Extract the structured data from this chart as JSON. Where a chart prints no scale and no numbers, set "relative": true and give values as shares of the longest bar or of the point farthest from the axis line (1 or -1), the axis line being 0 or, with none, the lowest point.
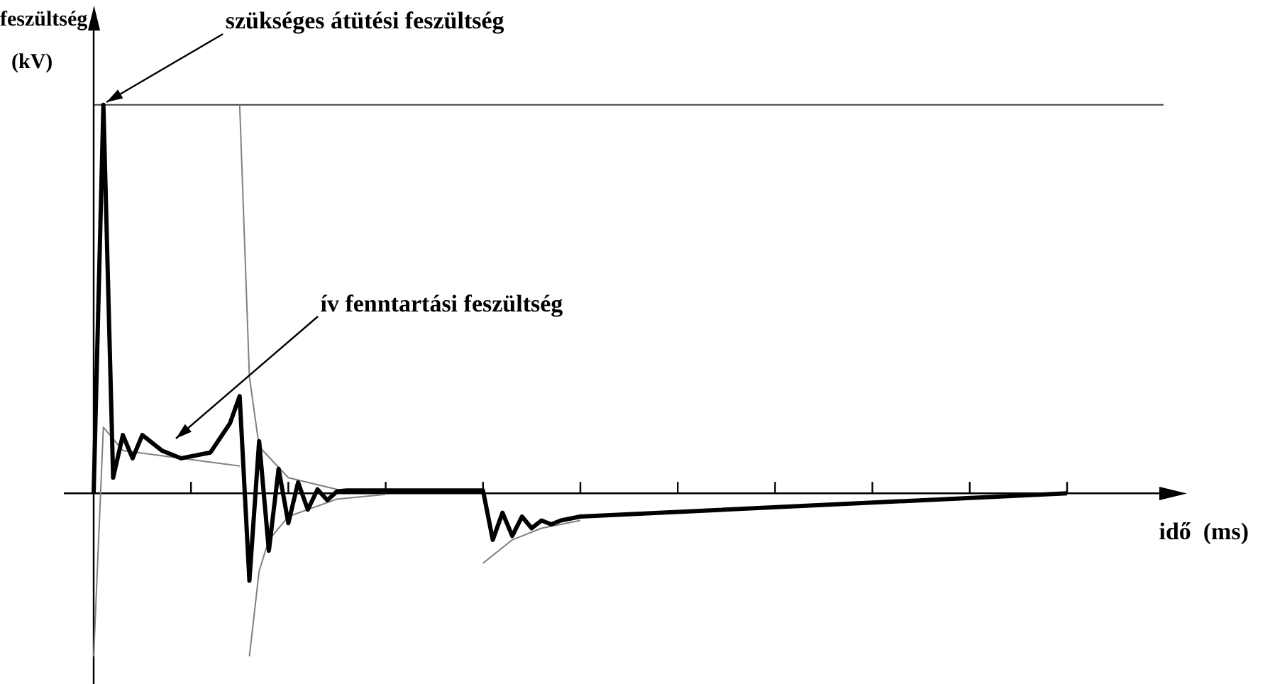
{
  "chart_data": {
    "type": "line",
    "relative": true,
    "xlabel": "idő  (ms)",
    "ylabel": "feszültség (kV)",
    "categories": [
      null,
      null,
      null,
      null,
      null,
      null,
      null,
      null,
      null,
      null,
      null,
      null,
      null,
      null,
      null,
      null,
      null,
      null,
      null,
      null,
      null,
      null,
      null,
      null,
      null,
      null,
      null,
      null,
      null,
      null,
      null,
      null,
      null,
      null,
      null,
      null,
      null,
      null,
      null,
      null,
      null,
      null,
      null,
      null,
      null,
      null,
      null,
      null,
      null,
      null,
      null,
      null,
      null,
      null,
      null,
      null,
      null,
      null,
      null,
      null,
      null,
      null,
      null,
      null,
      null,
      null,
      null,
      null,
      null,
      null,
      null,
      null,
      null,
      null,
      null,
      null,
      null,
      null,
      null,
      null,
      null,
      null,
      null,
      null,
      null,
      null,
      null,
      null,
      null,
      null,
      null,
      null,
      null,
      null,
      null,
      null,
      null,
      null,
      null,
      null,
      null
    ],
    "series": [
      {
        "color": "#000000",
        "values": [
          0,
          1,
          0.04,
          0.15,
          0.09,
          0.15,
          null,
          0.11,
          null,
          0.09,
          null,
          null,
          0.105,
          null,
          0.18,
          0.25,
          -0.225,
          0.134,
          -0.148,
          0.063,
          -0.077,
          0.028,
          -0.042,
          0.01,
          -0.018,
          0.005,
          0.007,
          null,
          null,
          null,
          null,
          null,
          null,
          null,
          null,
          null,
          null,
          null,
          null,
          null,
          0.007,
          -0.12,
          -0.05,
          -0.11,
          -0.06,
          -0.09,
          -0.07,
          -0.08,
          -0.07,
          null,
          -0.06,
          null,
          null,
          null,
          null,
          null,
          null,
          null,
          null,
          null,
          null,
          null,
          null,
          null,
          null,
          null,
          null,
          null,
          null,
          null,
          null,
          null,
          null,
          null,
          null,
          null,
          null,
          null,
          null,
          null,
          null,
          null,
          null,
          null,
          null,
          null,
          null,
          null,
          null,
          null,
          null,
          null,
          null,
          null,
          null,
          null,
          null,
          null,
          null,
          null,
          0
        ]
      },
      {
        "color": "#808080",
        "values": [
          null,
          null,
          null,
          null,
          null,
          null,
          null,
          null,
          null,
          null,
          null,
          null,
          null,
          null,
          null,
          1,
          0.3,
          0.12,
          null,
          null,
          0.04,
          null,
          null,
          null,
          null,
          0.01,
          null,
          null,
          null,
          null,
          0.003,
          null,
          null,
          null,
          null,
          null,
          null,
          null,
          null,
          null,
          null,
          null,
          null,
          null,
          null,
          null,
          null,
          null,
          null,
          null,
          null,
          null,
          null,
          null,
          null,
          null,
          null,
          null,
          null,
          null,
          null,
          null,
          null,
          null,
          null,
          null,
          null,
          null,
          null,
          null,
          null,
          null,
          null,
          null,
          null,
          null,
          null,
          null,
          null,
          null,
          null,
          null,
          null,
          null,
          null,
          null,
          null,
          null,
          null,
          null,
          null,
          null,
          null,
          null,
          null,
          null,
          null,
          null,
          null,
          null,
          null
        ]
      },
      {
        "color": "#808080",
        "values": [
          null,
          null,
          null,
          null,
          null,
          null,
          null,
          null,
          null,
          null,
          null,
          null,
          null,
          null,
          null,
          null,
          -0.42,
          -0.2,
          -0.12,
          null,
          -0.06,
          null,
          null,
          null,
          null,
          -0.015,
          null,
          null,
          null,
          null,
          -0.003,
          null,
          null,
          null,
          null,
          null,
          null,
          null,
          null,
          null,
          null,
          null,
          null,
          null,
          null,
          null,
          null,
          null,
          null,
          null,
          null,
          null,
          null,
          null,
          null,
          null,
          null,
          null,
          null,
          null,
          null,
          null,
          null,
          null,
          null,
          null,
          null,
          null,
          null,
          null,
          null,
          null,
          null,
          null,
          null,
          null,
          null,
          null,
          null,
          null,
          null,
          null,
          null,
          null,
          null,
          null,
          null,
          null,
          null,
          null,
          null,
          null,
          null,
          null,
          null,
          null,
          null,
          null,
          null,
          null,
          null
        ]
      },
      {
        "color": "#808080",
        "values": [
          -0.42,
          0.17,
          null,
          0.11,
          null,
          null,
          null,
          null,
          null,
          null,
          null,
          null,
          null,
          null,
          null,
          0.07,
          null,
          null,
          null,
          null,
          null,
          null,
          null,
          null,
          null,
          null,
          null,
          null,
          null,
          null,
          null,
          null,
          null,
          null,
          null,
          null,
          null,
          null,
          null,
          null,
          null,
          null,
          null,
          null,
          null,
          null,
          null,
          null,
          null,
          null,
          null,
          null,
          null,
          null,
          null,
          null,
          null,
          null,
          null,
          null,
          null,
          null,
          null,
          null,
          null,
          null,
          null,
          null,
          null,
          null,
          null,
          null,
          null,
          null,
          null,
          null,
          null,
          null,
          null,
          null,
          null,
          null,
          null,
          null,
          null,
          null,
          null,
          null,
          null,
          null,
          null,
          null,
          null,
          null,
          null,
          null,
          null,
          null,
          null,
          null,
          null
        ]
      },
      {
        "color": "#808080",
        "values": [
          null,
          null,
          null,
          null,
          null,
          null,
          null,
          null,
          null,
          null,
          null,
          null,
          null,
          null,
          null,
          null,
          null,
          null,
          null,
          null,
          null,
          null,
          null,
          null,
          null,
          null,
          null,
          null,
          null,
          null,
          null,
          null,
          null,
          null,
          null,
          null,
          null,
          null,
          null,
          null,
          -0.18,
          null,
          null,
          -0.12,
          null,
          null,
          -0.09,
          null,
          null,
          null,
          -0.07,
          null,
          null,
          null,
          null,
          null,
          null,
          null,
          null,
          null,
          null,
          null,
          null,
          null,
          null,
          null,
          null,
          null,
          null,
          null,
          null,
          null,
          null,
          null,
          null,
          null,
          null,
          null,
          null,
          null,
          null,
          null,
          null,
          null,
          null,
          null,
          null,
          null,
          null,
          null,
          null,
          null,
          null,
          null,
          null,
          null,
          null,
          null,
          null,
          null,
          null
        ]
      }
    ],
    "ref_lines": [
      {
        "axis": "y",
        "value": 1,
        "color": "#404040"
      }
    ],
    "annotations": [
      {
        "text": "szükséges átütési feszültség"
      },
      {
        "text": "ív fenntartási feszültség"
      }
    ],
    "legend": false,
    "grid": false
  }
}
